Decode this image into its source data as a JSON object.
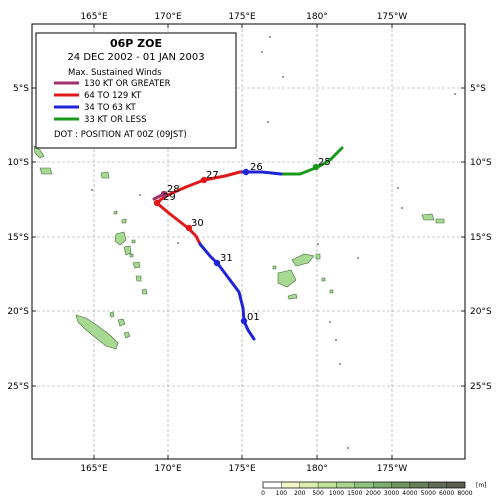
{
  "map": {
    "top_lon_labels": [
      "165°E",
      "170°E",
      "175°E",
      "180°",
      "175°W"
    ],
    "bottom_lon_labels": [
      "165°E",
      "170°E",
      "175°E",
      "180°",
      "175°W"
    ],
    "lat_labels": [
      "5°S",
      "10°S",
      "15°S",
      "20°S",
      "25°S"
    ]
  },
  "legend": {
    "title": "06P  ZOE",
    "period": "24 DEC 2002 - 01 JAN 2003",
    "winds_heading": "Max. Sustained Winds",
    "categories": [
      {
        "label": "130 KT OR GREATER",
        "color": "#a0306a"
      },
      {
        "label": "64 TO 129 KT",
        "color": "#e01818"
      },
      {
        "label": "34 TO 63 KT",
        "color": "#1f24d6"
      },
      {
        "label": "33 KT OR LESS",
        "color": "#1a9a1a"
      }
    ],
    "dot_note": "DOT : POSITION AT 00Z (09JST)"
  },
  "track": {
    "day_labels": [
      "25",
      "26",
      "27",
      "28",
      "29",
      "30",
      "31",
      "01"
    ]
  },
  "colorbar": {
    "values": [
      "0",
      "100",
      "200",
      "500",
      "1000",
      "1500",
      "2000",
      "3000",
      "4000",
      "5000",
      "6000",
      "8000"
    ],
    "unit": "[m]",
    "colors": [
      "#ffffff",
      "#f2f5c8",
      "#dbeeae",
      "#c2e39c",
      "#a8d48e",
      "#90c17e",
      "#7eab6e",
      "#6f9661",
      "#667f58",
      "#626b54",
      "#5c5c52"
    ]
  }
}
